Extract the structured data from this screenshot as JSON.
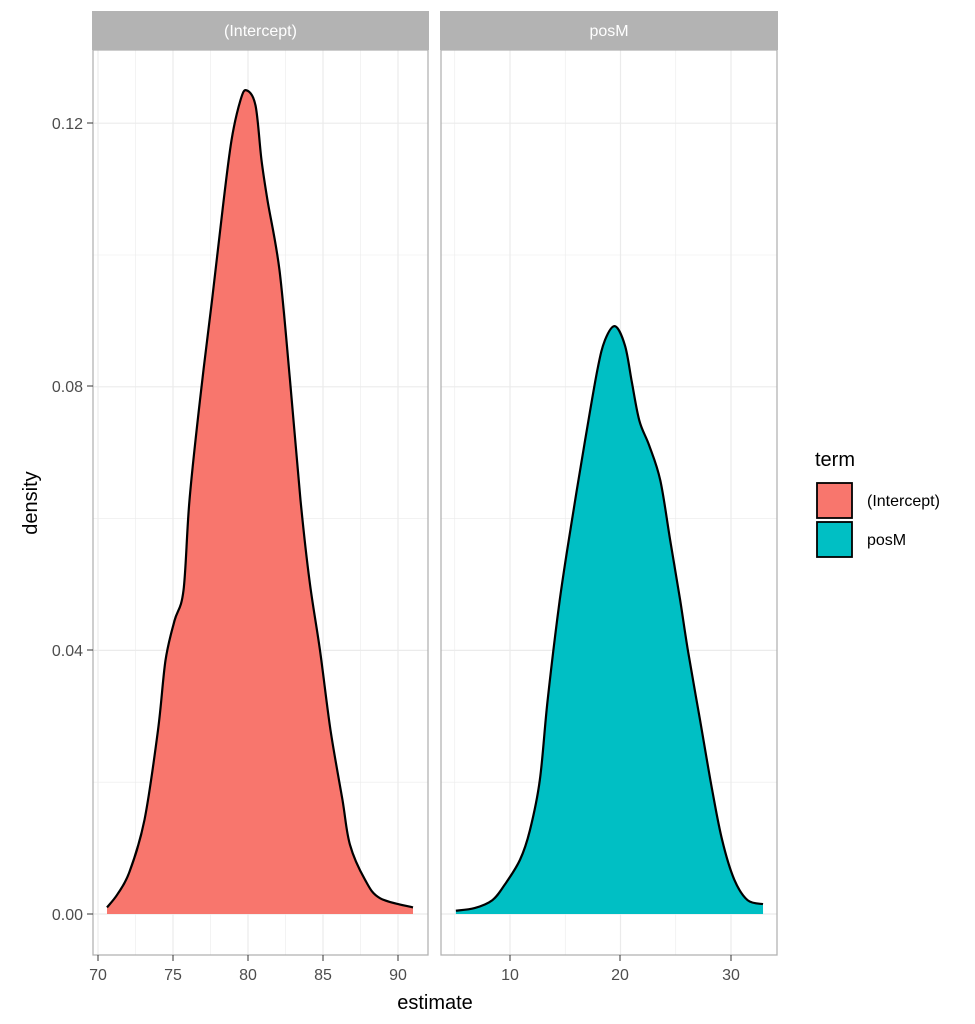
{
  "chart_data": {
    "type": "area",
    "subtype": "faceted density plot",
    "xlabel": "estimate",
    "ylabel": "density",
    "ylim": [
      -0.0062,
      0.1312
    ],
    "y_ticks": [
      "0.00",
      "0.04",
      "0.08",
      "0.12"
    ],
    "y_tick_values": [
      0,
      0.04,
      0.08,
      0.12
    ],
    "grid": true,
    "legend": {
      "title": "term",
      "position": "right",
      "entries": [
        {
          "label": "(Intercept)",
          "color": "#F8766D"
        },
        {
          "label": "posM",
          "color": "#00BFC4"
        }
      ]
    },
    "facets": [
      {
        "strip_label": "(Intercept)",
        "color": "#F8766D",
        "xlim": [
          69.7,
          92.1
        ],
        "x_ticks": [
          "70",
          "75",
          "80",
          "85",
          "90"
        ],
        "x_tick_values": [
          70,
          75,
          80,
          85,
          90
        ],
        "x": [
          70.6,
          71.3,
          72.1,
          73.1,
          74.0,
          74.5,
          75.1,
          75.7,
          76.1,
          76.8,
          77.6,
          78.3,
          78.9,
          79.5,
          79.9,
          80.5,
          80.9,
          81.3,
          82.1,
          82.8,
          83.5,
          84.1,
          84.8,
          85.5,
          86.3,
          86.8,
          87.8,
          88.8,
          91.0
        ],
        "density": [
          0.001,
          0.003,
          0.0064,
          0.0143,
          0.0279,
          0.0385,
          0.0445,
          0.0491,
          0.0628,
          0.078,
          0.0931,
          0.1068,
          0.1174,
          0.1235,
          0.125,
          0.1227,
          0.1144,
          0.1083,
          0.0977,
          0.081,
          0.0628,
          0.0506,
          0.04,
          0.0279,
          0.0173,
          0.0105,
          0.0052,
          0.0024,
          0.001
        ]
      },
      {
        "strip_label": "posM",
        "color": "#00BFC4",
        "xlim": [
          3.6,
          34.2
        ],
        "x_ticks": [
          "10",
          "20",
          "30"
        ],
        "x_tick_values": [
          10,
          20,
          30
        ],
        "x": [
          5.1,
          6.8,
          8.4,
          9.5,
          10.9,
          11.8,
          12.7,
          13.4,
          14.5,
          15.6,
          16.8,
          17.9,
          18.6,
          19.5,
          20.4,
          21.0,
          21.7,
          22.6,
          23.6,
          24.5,
          25.4,
          26.1,
          27.2,
          28.3,
          29.2,
          30.3,
          31.5,
          32.9
        ],
        "density": [
          0.0005,
          0.0009,
          0.0021,
          0.0044,
          0.0082,
          0.0127,
          0.0203,
          0.0324,
          0.0476,
          0.0597,
          0.0719,
          0.0825,
          0.0871,
          0.0892,
          0.0863,
          0.081,
          0.0749,
          0.0711,
          0.0658,
          0.0567,
          0.0476,
          0.04,
          0.0294,
          0.0188,
          0.0112,
          0.0052,
          0.0021,
          0.0015
        ]
      }
    ]
  },
  "panels": [
    {
      "strip_label": "(Intercept)"
    },
    {
      "strip_label": "posM"
    }
  ],
  "axes": {
    "x_title": "estimate",
    "y_title": "density",
    "y_labels": [
      "0.00",
      "0.04",
      "0.08",
      "0.12"
    ],
    "panel1_x_labels": [
      "70",
      "75",
      "80",
      "85",
      "90"
    ],
    "panel2_x_labels": [
      "10",
      "20",
      "30"
    ]
  },
  "legend": {
    "title": "term",
    "items": [
      {
        "label": "(Intercept)",
        "color": "#F8766D"
      },
      {
        "label": "posM",
        "color": "#00BFC4"
      }
    ]
  }
}
